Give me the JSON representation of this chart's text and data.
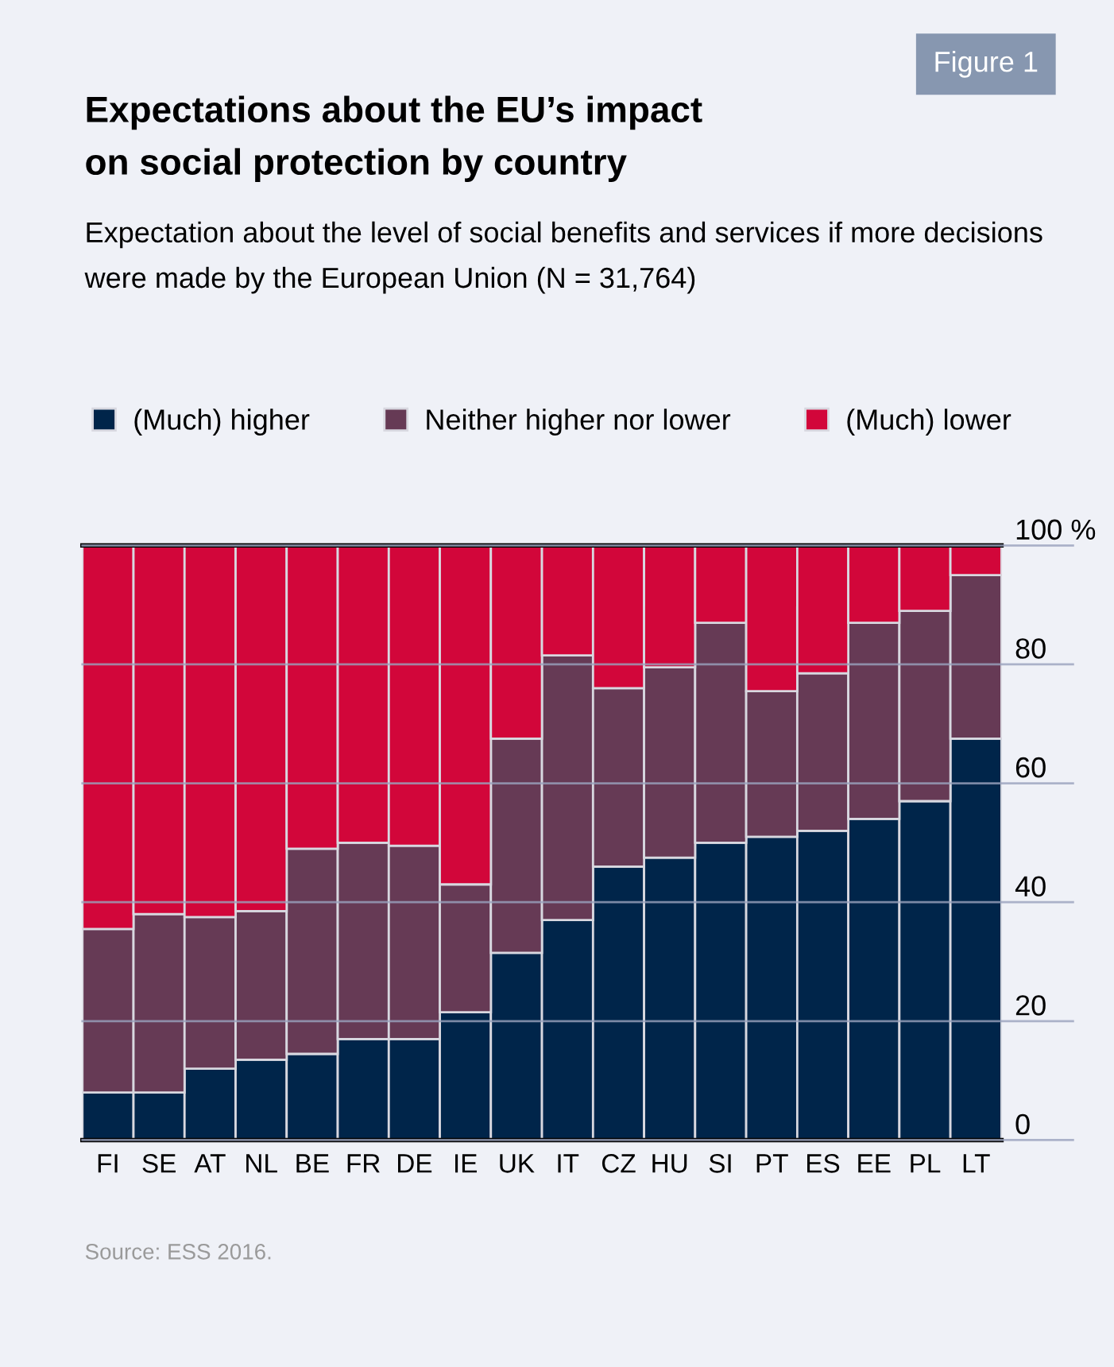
{
  "chart_data": {
    "type": "bar",
    "stacked": true,
    "title": "Expectations about the EU’s impact\non social protection by country",
    "subtitle": "Expectation about the level of social benefits and services if more decisions\nwere made by the European Union (N = 31,764)",
    "categories": [
      "FI",
      "SE",
      "AT",
      "NL",
      "BE",
      "FR",
      "DE",
      "IE",
      "UK",
      "IT",
      "CZ",
      "HU",
      "SI",
      "PT",
      "ES",
      "EE",
      "PL",
      "LT"
    ],
    "series": [
      {
        "name": "(Much) higher",
        "color": "#00254a",
        "values": [
          8,
          8,
          12,
          13.5,
          14.5,
          17,
          17,
          21.5,
          31.5,
          37,
          46,
          47.5,
          50,
          51,
          52,
          54,
          57,
          67.5
        ]
      },
      {
        "name": "Neither higher nor lower",
        "color": "#663a55",
        "values": [
          27.5,
          30,
          25.5,
          25,
          34.5,
          33,
          32.5,
          21.5,
          36,
          44.5,
          30,
          32,
          37,
          24.5,
          26.5,
          33,
          32,
          27.5
        ]
      },
      {
        "name": "(Much) lower",
        "color": "#d2063a",
        "values": [
          64.5,
          62,
          62.5,
          61.5,
          51,
          50,
          50.5,
          57,
          32.5,
          18.5,
          24,
          20.5,
          13,
          24.5,
          21.5,
          13,
          11,
          5
        ]
      }
    ],
    "ylim": [
      0,
      100
    ],
    "yticks": [
      0,
      20,
      40,
      60,
      80,
      {
        "value": 100,
        "label": "100 %"
      }
    ],
    "grid": "y",
    "legend": "top left",
    "annotations": [
      "Figure 1",
      "Source: ESS 2016."
    ]
  }
}
